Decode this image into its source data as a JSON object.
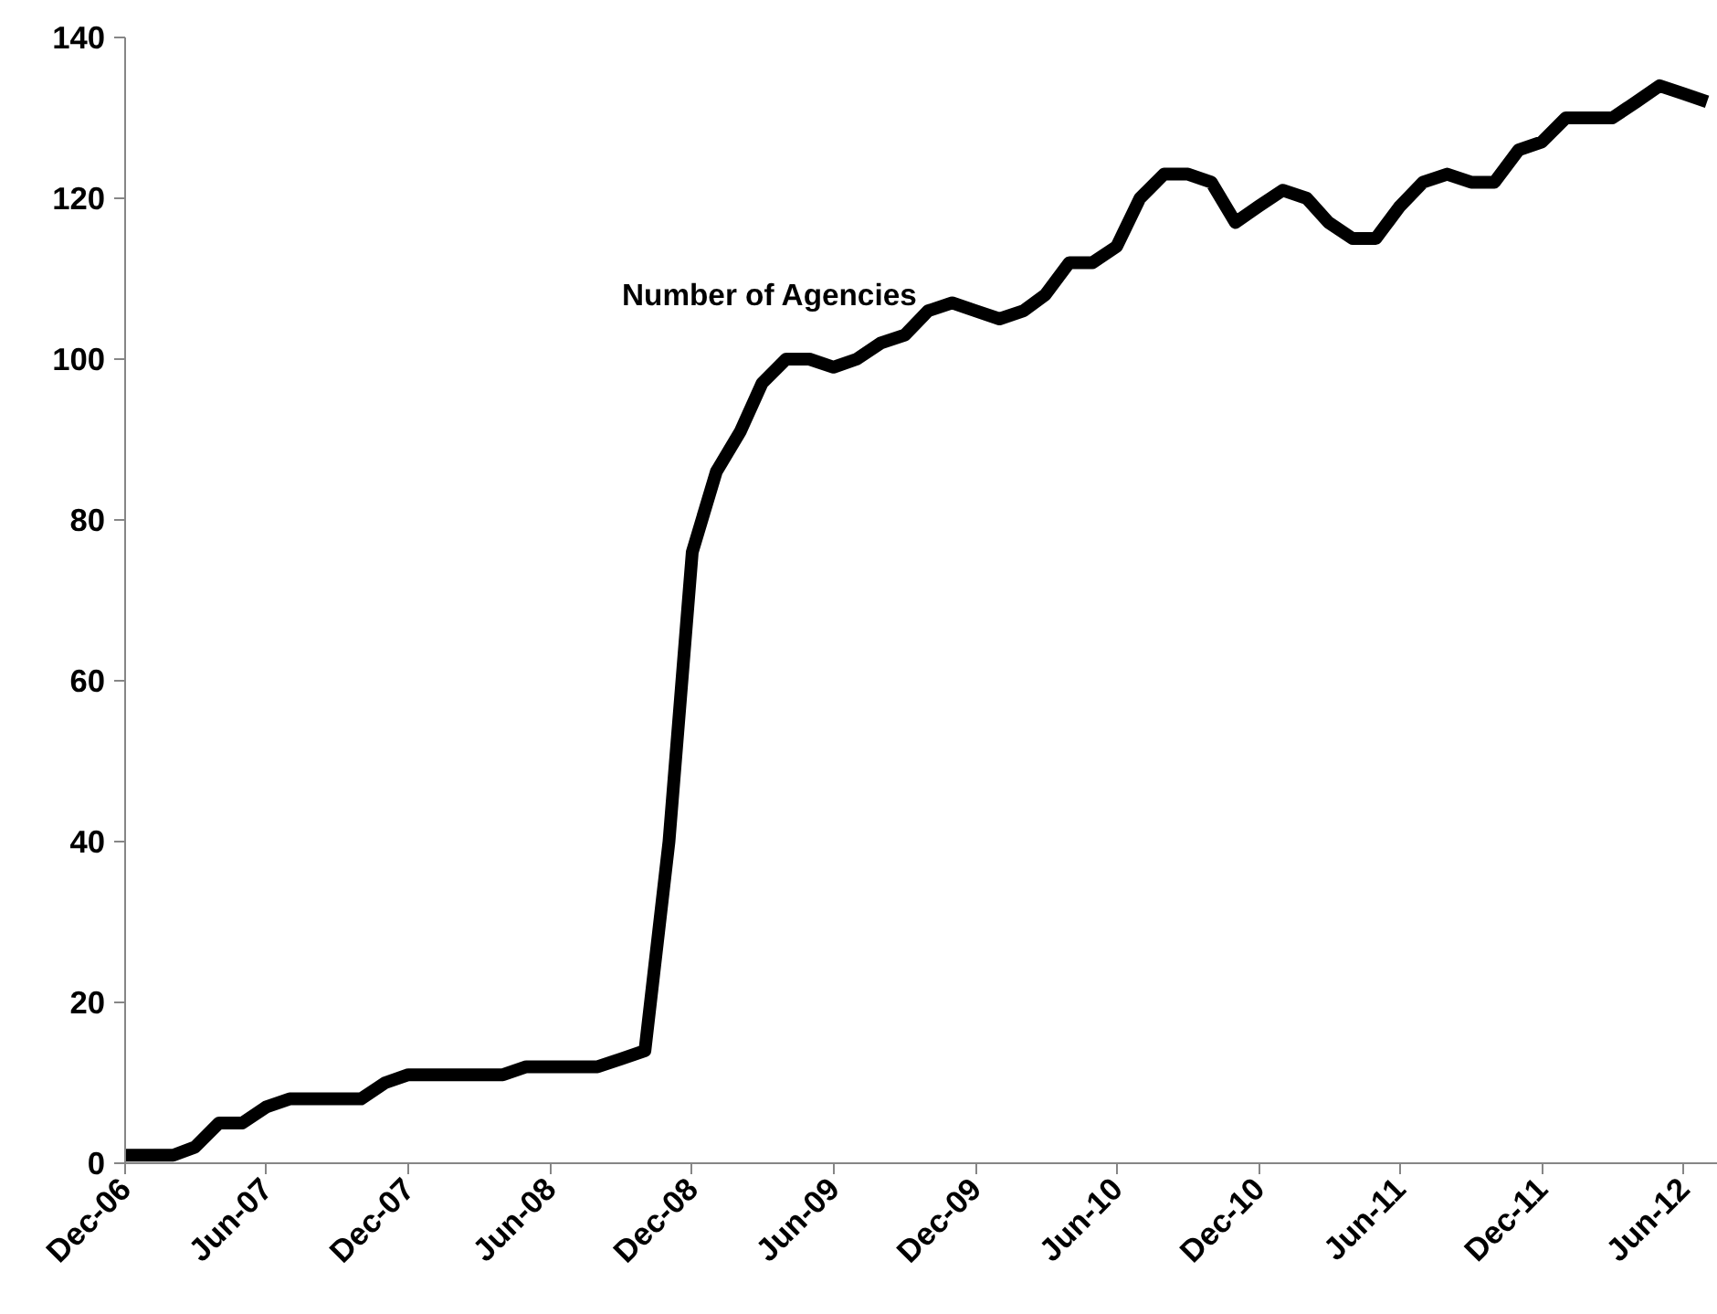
{
  "chart_data": {
    "type": "line",
    "x": [
      "2006-12",
      "2007-01",
      "2007-02",
      "2007-03",
      "2007-04",
      "2007-05",
      "2007-06",
      "2007-07",
      "2007-08",
      "2007-09",
      "2007-10",
      "2007-11",
      "2007-12",
      "2008-01",
      "2008-02",
      "2008-03",
      "2008-04",
      "2008-05",
      "2008-06",
      "2008-07",
      "2008-08",
      "2008-09",
      "2008-10",
      "2008-11",
      "2008-12",
      "2009-01",
      "2009-02",
      "2009-03",
      "2009-04",
      "2009-05",
      "2009-06",
      "2009-07",
      "2009-08",
      "2009-09",
      "2009-10",
      "2009-11",
      "2009-12",
      "2010-01",
      "2010-02",
      "2010-03",
      "2010-04",
      "2010-05",
      "2010-06",
      "2010-07",
      "2010-08",
      "2010-09",
      "2010-10",
      "2010-11",
      "2010-12",
      "2011-01",
      "2011-02",
      "2011-03",
      "2011-04",
      "2011-05",
      "2011-06",
      "2011-07",
      "2011-08",
      "2011-09",
      "2011-10",
      "2011-11",
      "2011-12",
      "2012-01",
      "2012-02",
      "2012-03",
      "2012-04",
      "2012-05",
      "2012-06",
      "2012-07"
    ],
    "series": [
      {
        "name": "Number of Agencies",
        "color": "#000000",
        "values": [
          1,
          1,
          1,
          2,
          5,
          5,
          7,
          8,
          8,
          8,
          8,
          10,
          11,
          11,
          11,
          11,
          11,
          12,
          12,
          12,
          12,
          13,
          14,
          40,
          76,
          86,
          91,
          97,
          100,
          100,
          99,
          100,
          102,
          103,
          106,
          107,
          106,
          105,
          106,
          108,
          112,
          112,
          114,
          120,
          123,
          123,
          122,
          117,
          119,
          121,
          120,
          117,
          115,
          115,
          119,
          122,
          123,
          122,
          122,
          126,
          127,
          130,
          130,
          130,
          132,
          134,
          133,
          132
        ]
      }
    ],
    "xlim": [
      "2006-12",
      "2012-07-15"
    ],
    "xticks": [
      {
        "value": "2006-12",
        "label": "Dec-06"
      },
      {
        "value": "2007-06",
        "label": "Jun-07"
      },
      {
        "value": "2007-12",
        "label": "Dec-07"
      },
      {
        "value": "2008-06",
        "label": "Jun-08"
      },
      {
        "value": "2008-12",
        "label": "Dec-08"
      },
      {
        "value": "2009-06",
        "label": "Jun-09"
      },
      {
        "value": "2009-12",
        "label": "Dec-09"
      },
      {
        "value": "2010-06",
        "label": "Jun-10"
      },
      {
        "value": "2010-12",
        "label": "Dec-10"
      },
      {
        "value": "2011-06",
        "label": "Jun-11"
      },
      {
        "value": "2011-12",
        "label": "Dec-11"
      },
      {
        "value": "2012-06",
        "label": "Jun-12"
      }
    ],
    "ylim": [
      0,
      140
    ],
    "yticks": [
      0,
      20,
      40,
      60,
      80,
      100,
      120,
      140
    ],
    "grid": false,
    "legend": false,
    "marker": "none",
    "line_style": "solid"
  }
}
